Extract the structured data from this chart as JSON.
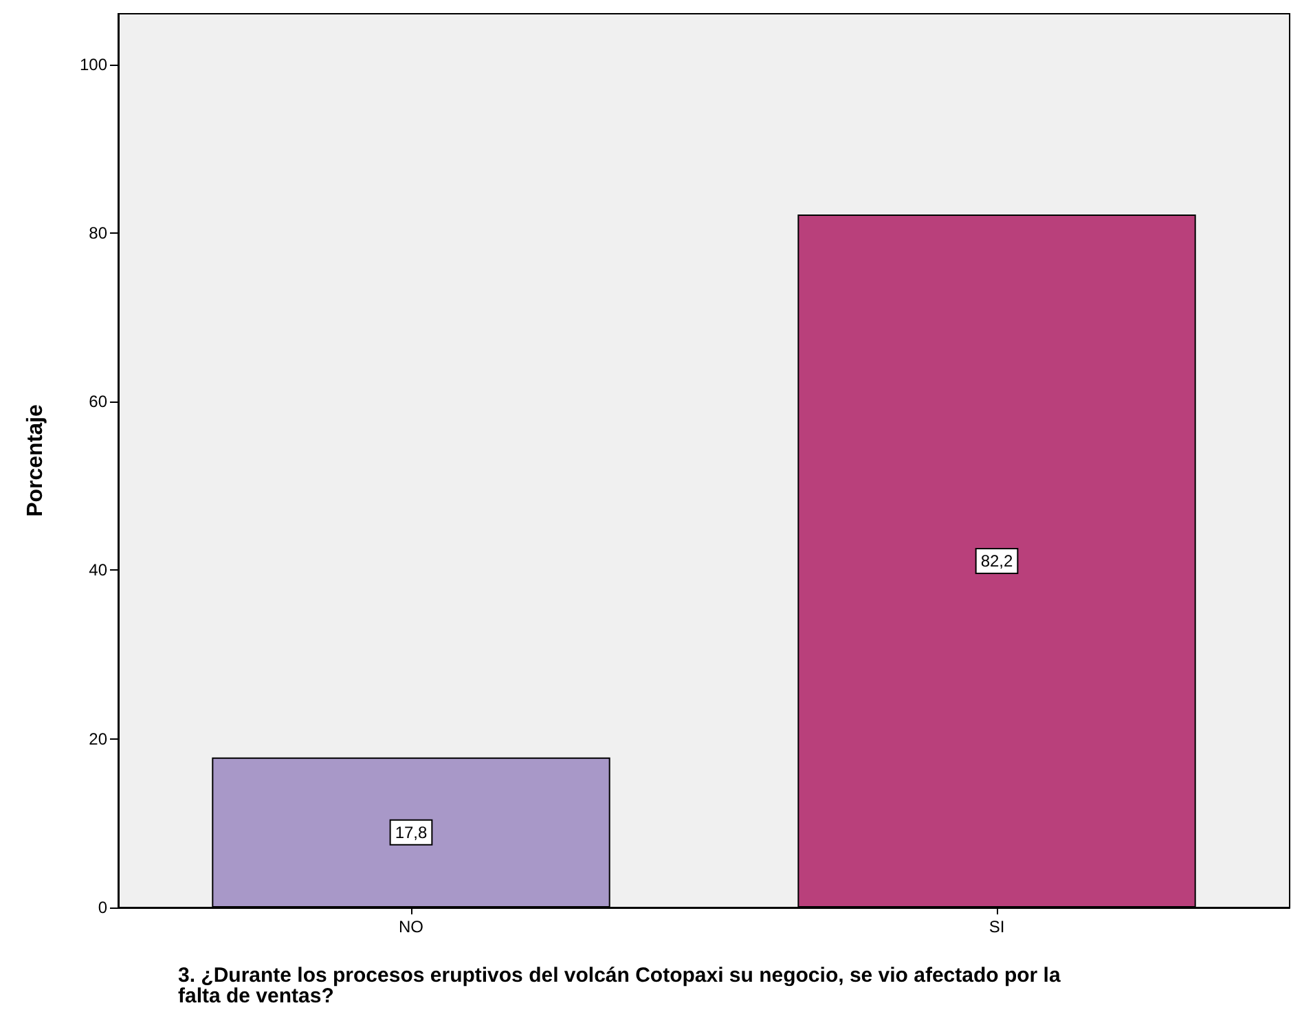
{
  "chart_data": {
    "type": "bar",
    "xlabel": "3. ¿Durante los procesos eruptivos del volcán Cotopaxi su negocio, se vio afectado por la falta de ventas?",
    "ylabel": "Porcentaje",
    "categories": [
      "NO",
      "SI"
    ],
    "values": [
      17.8,
      82.2
    ],
    "colors": [
      "#a898c8",
      "#b9407b"
    ],
    "value_labels": [
      "17,8",
      "82,2"
    ],
    "ylim": [
      0,
      106
    ],
    "yticks": [
      0,
      20,
      40,
      60,
      80,
      100
    ],
    "grid": false
  }
}
